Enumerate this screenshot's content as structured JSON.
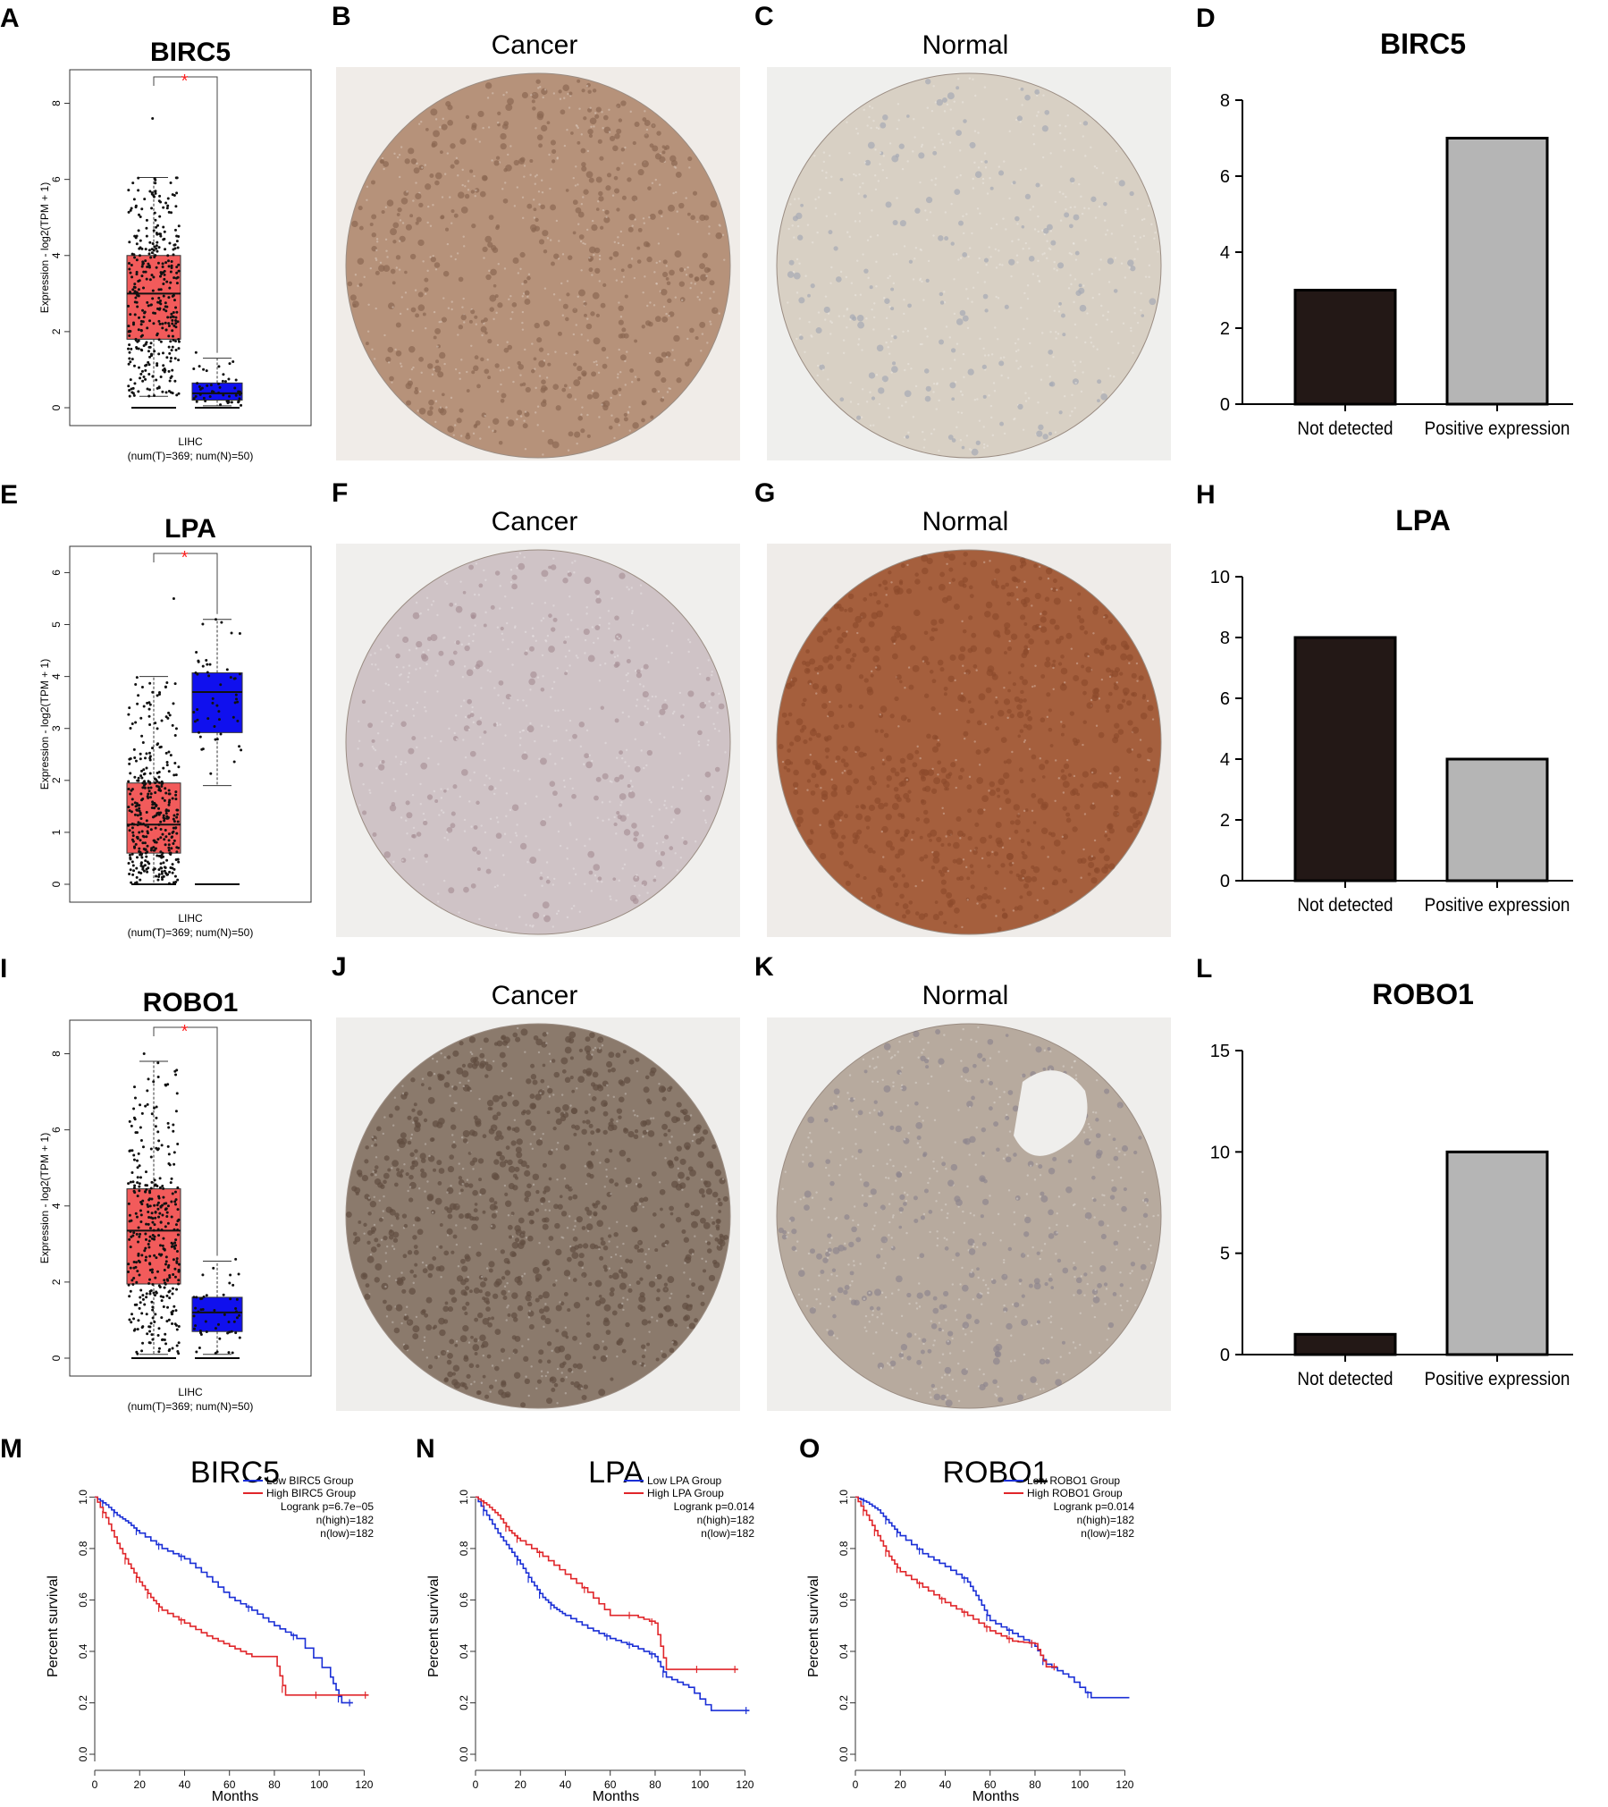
{
  "panels": {
    "box": [
      {
        "letter": "A",
        "gene": "BIRC5",
        "ylabel": "Expression - log2(TPM + 1)",
        "yticks": [
          0,
          2,
          4,
          6,
          8
        ],
        "ymax": 8.6,
        "tumor": {
          "q1": 1.8,
          "median": 3.0,
          "q3": 4.0,
          "lower": 0.3,
          "upper": 6.05,
          "max_point": 7.6
        },
        "normal": {
          "q1": 0.2,
          "median": 0.38,
          "q3": 0.65,
          "lower": 0.05,
          "upper": 1.3,
          "max_point": 1.45
        },
        "significance": "*",
        "xlabel": "LIHC",
        "sub": "(num(T)=369; num(N)=50)"
      },
      {
        "letter": "E",
        "gene": "LPA",
        "ylabel": "Expression - log2(TPM + 1)",
        "yticks": [
          0,
          1,
          2,
          3,
          4,
          5,
          6
        ],
        "ymax": 6.3,
        "tumor": {
          "q1": 0.6,
          "median": 1.15,
          "q3": 1.95,
          "lower": 0.0,
          "upper": 4.0,
          "max_point": 5.5
        },
        "normal": {
          "q1": 2.92,
          "median": 3.7,
          "q3": 4.07,
          "lower": 1.9,
          "upper": 5.1,
          "max_point": 5.1
        },
        "significance": "*",
        "xlabel": "LIHC",
        "sub": "(num(T)=369; num(N)=50)"
      },
      {
        "letter": "I",
        "gene": "ROBO1",
        "ylabel": "Expression - log2(TPM + 1)",
        "yticks": [
          0,
          2,
          4,
          6,
          8
        ],
        "ymax": 8.6,
        "tumor": {
          "q1": 1.95,
          "median": 3.35,
          "q3": 4.45,
          "lower": 0.1,
          "upper": 7.8,
          "max_point": 8.0
        },
        "normal": {
          "q1": 0.7,
          "median": 1.2,
          "q3": 1.6,
          "lower": 0.1,
          "upper": 2.55,
          "max_point": 2.6
        },
        "significance": "*",
        "xlabel": "LIHC",
        "sub": "(num(T)=369; num(N)=50)"
      }
    ],
    "ihc": [
      {
        "letter": "B",
        "title": "Cancer",
        "stain": "BIRC5 cancer tissue core"
      },
      {
        "letter": "C",
        "title": "Normal",
        "stain": "BIRC5 normal tissue core"
      },
      {
        "letter": "F",
        "title": "Cancer",
        "stain": "LPA cancer tissue core"
      },
      {
        "letter": "G",
        "title": "Normal",
        "stain": "LPA normal tissue core"
      },
      {
        "letter": "J",
        "title": "Cancer",
        "stain": "ROBO1 cancer tissue core"
      },
      {
        "letter": "K",
        "title": "Normal",
        "stain": "ROBO1 normal tissue core"
      }
    ],
    "bar": [
      {
        "letter": "D",
        "title": "BIRC5",
        "categories": [
          "Not detected",
          "Positive expression"
        ],
        "values": [
          3,
          7
        ],
        "ylim": [
          0,
          8
        ],
        "yticks": [
          0,
          2,
          4,
          6,
          8
        ]
      },
      {
        "letter": "H",
        "title": "LPA",
        "categories": [
          "Not detected",
          "Positive expression"
        ],
        "values": [
          8,
          4
        ],
        "ylim": [
          0,
          10
        ],
        "yticks": [
          0,
          2,
          4,
          6,
          8,
          10
        ]
      },
      {
        "letter": "L",
        "title": "ROBO1",
        "categories": [
          "Not detected",
          "Positive expression"
        ],
        "values": [
          1,
          10
        ],
        "ylim": [
          0,
          15
        ],
        "yticks": [
          0,
          5,
          10,
          15
        ]
      }
    ],
    "km": [
      {
        "letter": "M",
        "title": "BIRC5",
        "legend_low": "Low BIRC5 Group",
        "legend_high": "High BIRC5 Group",
        "logrank": "Logrank p=6.7e−05",
        "n_high": "n(high)=182",
        "n_low": "n(low)=182",
        "low": [
          [
            0,
            1.0
          ],
          [
            5,
            0.97
          ],
          [
            10,
            0.93
          ],
          [
            15,
            0.9
          ],
          [
            20,
            0.86
          ],
          [
            30,
            0.8
          ],
          [
            40,
            0.76
          ],
          [
            50,
            0.69
          ],
          [
            60,
            0.61
          ],
          [
            70,
            0.56
          ],
          [
            80,
            0.5
          ],
          [
            90,
            0.45
          ],
          [
            105,
            0.3
          ],
          [
            110,
            0.2
          ],
          [
            115,
            0.2
          ]
        ],
        "high": [
          [
            0,
            1.0
          ],
          [
            5,
            0.92
          ],
          [
            10,
            0.82
          ],
          [
            15,
            0.74
          ],
          [
            20,
            0.67
          ],
          [
            25,
            0.61
          ],
          [
            30,
            0.56
          ],
          [
            40,
            0.51
          ],
          [
            50,
            0.46
          ],
          [
            60,
            0.42
          ],
          [
            70,
            0.38
          ],
          [
            80,
            0.38
          ],
          [
            85,
            0.23
          ],
          [
            100,
            0.23
          ],
          [
            122,
            0.23
          ]
        ]
      },
      {
        "letter": "N",
        "title": "LPA",
        "legend_low": "Low LPA Group",
        "legend_high": "High LPA Group",
        "logrank": "Logrank p=0.014",
        "n_high": "n(high)=182",
        "n_low": "n(low)=182",
        "low": [
          [
            0,
            1.0
          ],
          [
            5,
            0.93
          ],
          [
            10,
            0.86
          ],
          [
            15,
            0.8
          ],
          [
            20,
            0.74
          ],
          [
            25,
            0.67
          ],
          [
            30,
            0.61
          ],
          [
            35,
            0.57
          ],
          [
            40,
            0.54
          ],
          [
            50,
            0.49
          ],
          [
            60,
            0.45
          ],
          [
            70,
            0.42
          ],
          [
            80,
            0.38
          ],
          [
            85,
            0.3
          ],
          [
            95,
            0.26
          ],
          [
            105,
            0.17
          ],
          [
            122,
            0.17
          ]
        ],
        "high": [
          [
            0,
            1.0
          ],
          [
            5,
            0.97
          ],
          [
            10,
            0.93
          ],
          [
            15,
            0.87
          ],
          [
            20,
            0.83
          ],
          [
            30,
            0.77
          ],
          [
            40,
            0.7
          ],
          [
            50,
            0.63
          ],
          [
            60,
            0.54
          ],
          [
            70,
            0.54
          ],
          [
            80,
            0.51
          ],
          [
            85,
            0.33
          ],
          [
            100,
            0.33
          ],
          [
            117,
            0.33
          ]
        ]
      },
      {
        "letter": "O",
        "title": "ROBO1",
        "legend_low": "Low ROBO1 Group",
        "legend_high": "High ROBO1 Group",
        "logrank": "Logrank p=0.014",
        "n_high": "n(high)=182",
        "n_low": "n(low)=182",
        "low": [
          [
            0,
            1.0
          ],
          [
            5,
            0.98
          ],
          [
            10,
            0.95
          ],
          [
            15,
            0.9
          ],
          [
            20,
            0.85
          ],
          [
            30,
            0.78
          ],
          [
            40,
            0.73
          ],
          [
            50,
            0.67
          ],
          [
            55,
            0.6
          ],
          [
            60,
            0.52
          ],
          [
            70,
            0.47
          ],
          [
            80,
            0.42
          ],
          [
            85,
            0.35
          ],
          [
            95,
            0.3
          ],
          [
            105,
            0.22
          ],
          [
            122,
            0.22
          ]
        ],
        "high": [
          [
            0,
            1.0
          ],
          [
            5,
            0.93
          ],
          [
            10,
            0.85
          ],
          [
            15,
            0.77
          ],
          [
            20,
            0.71
          ],
          [
            30,
            0.65
          ],
          [
            40,
            0.59
          ],
          [
            50,
            0.54
          ],
          [
            60,
            0.48
          ],
          [
            70,
            0.44
          ],
          [
            80,
            0.43
          ],
          [
            85,
            0.34
          ],
          [
            90,
            0.34
          ]
        ]
      }
    ]
  },
  "km_axes": {
    "xlabel": "Months",
    "ylabel": "Percent survival",
    "xticks": [
      0,
      20,
      40,
      60,
      80,
      100,
      120
    ],
    "yticks": [
      0.0,
      0.2,
      0.4,
      0.6,
      0.8,
      1.0
    ]
  },
  "colors": {
    "tumor": "#f25b5b",
    "normal": "#1010ee",
    "bar_nd": "#231816",
    "bar_pos": "#b5b5b5",
    "km_low": "#1a2fd6",
    "km_high": "#e0262a",
    "sig": "#ff2020"
  },
  "chart_data": [
    {
      "type": "bar",
      "title": "BIRC5",
      "categories": [
        "Not detected",
        "Positive expression"
      ],
      "values": [
        3,
        7
      ],
      "ylim": [
        0,
        8
      ]
    },
    {
      "type": "bar",
      "title": "LPA",
      "categories": [
        "Not detected",
        "Positive expression"
      ],
      "values": [
        8,
        4
      ],
      "ylim": [
        0,
        10
      ]
    },
    {
      "type": "bar",
      "title": "ROBO1",
      "categories": [
        "Not detected",
        "Positive expression"
      ],
      "values": [
        1,
        10
      ],
      "ylim": [
        0,
        15
      ]
    }
  ]
}
